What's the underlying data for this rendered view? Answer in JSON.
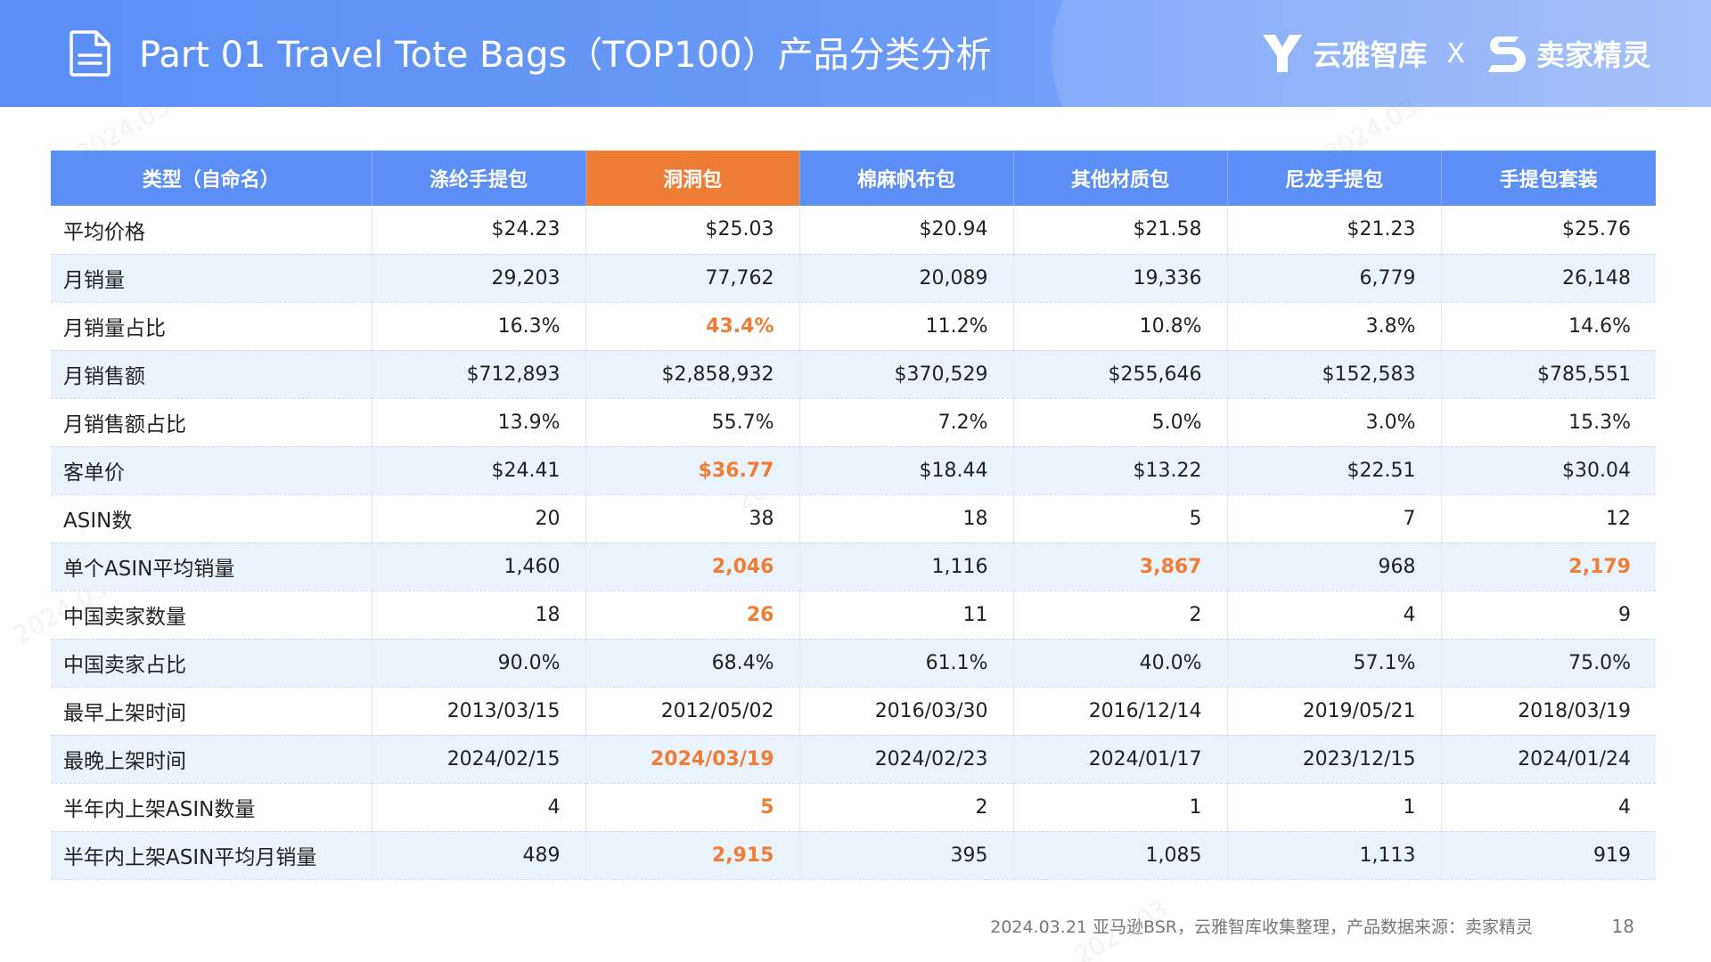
{
  "header": {
    "title": "Part 01 Travel Tote Bags（TOP100）产品分类分析",
    "logo_left": "云雅智库",
    "logo_sep": "X",
    "logo_right": "卖家精灵"
  },
  "watermark": "2024.03",
  "table": {
    "columns": [
      "类型（自命名）",
      "涤纶手提包",
      "洞洞包",
      "棉麻帆布包",
      "其他材质包",
      "尼龙手提包",
      "手提包套装"
    ],
    "highlight_column": 2,
    "rows": [
      {
        "label": "平均价格",
        "values": [
          "$24.23",
          "$25.03",
          "$20.94",
          "$21.58",
          "$21.23",
          "$25.76"
        ],
        "hl": []
      },
      {
        "label": "月销量",
        "values": [
          "29,203",
          "77,762",
          "20,089",
          "19,336",
          "6,779",
          "26,148"
        ],
        "hl": []
      },
      {
        "label": "月销量占比",
        "values": [
          "16.3%",
          "43.4%",
          "11.2%",
          "10.8%",
          "3.8%",
          "14.6%"
        ],
        "hl": [
          1
        ]
      },
      {
        "label": "月销售额",
        "values": [
          "$712,893",
          "$2,858,932",
          "$370,529",
          "$255,646",
          "$152,583",
          "$785,551"
        ],
        "hl": []
      },
      {
        "label": "月销售额占比",
        "values": [
          "13.9%",
          "55.7%",
          "7.2%",
          "5.0%",
          "3.0%",
          "15.3%"
        ],
        "hl": []
      },
      {
        "label": "客单价",
        "values": [
          "$24.41",
          "$36.77",
          "$18.44",
          "$13.22",
          "$22.51",
          "$30.04"
        ],
        "hl": [
          1
        ]
      },
      {
        "label": "ASIN数",
        "values": [
          "20",
          "38",
          "18",
          "5",
          "7",
          "12"
        ],
        "hl": []
      },
      {
        "label": "单个ASIN平均销量",
        "values": [
          "1,460",
          "2,046",
          "1,116",
          "3,867",
          "968",
          "2,179"
        ],
        "hl": [
          1,
          3,
          5
        ]
      },
      {
        "label": "中国卖家数量",
        "values": [
          "18",
          "26",
          "11",
          "2",
          "4",
          "9"
        ],
        "hl": [
          1
        ]
      },
      {
        "label": "中国卖家占比",
        "values": [
          "90.0%",
          "68.4%",
          "61.1%",
          "40.0%",
          "57.1%",
          "75.0%"
        ],
        "hl": []
      },
      {
        "label": "最早上架时间",
        "values": [
          "2013/03/15",
          "2012/05/02",
          "2016/03/30",
          "2016/12/14",
          "2019/05/21",
          "2018/03/19"
        ],
        "hl": []
      },
      {
        "label": "最晚上架时间",
        "values": [
          "2024/02/15",
          "2024/03/19",
          "2024/02/23",
          "2024/01/17",
          "2023/12/15",
          "2024/01/24"
        ],
        "hl": [
          1
        ]
      },
      {
        "label": "半年内上架ASIN数量",
        "values": [
          "4",
          "5",
          "2",
          "1",
          "1",
          "4"
        ],
        "hl": [
          1
        ]
      },
      {
        "label": "半年内上架ASIN平均月销量",
        "values": [
          "489",
          "2,915",
          "395",
          "1,085",
          "1,113",
          "919"
        ],
        "hl": [
          1
        ]
      }
    ]
  },
  "footer": {
    "source": "2024.03.21 亚马逊BSR，云雅智库收集整理，产品数据来源：卖家精灵",
    "page": "18"
  }
}
